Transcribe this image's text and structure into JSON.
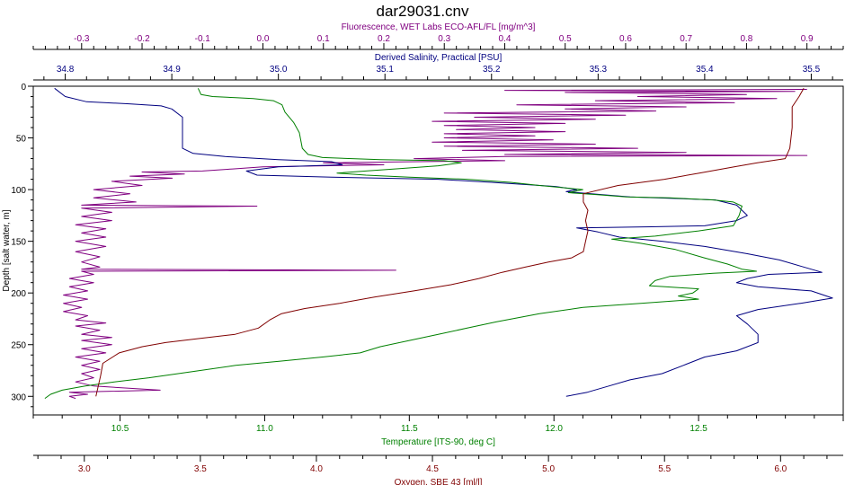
{
  "chart_data": {
    "type": "line",
    "title": "dar29031.cnv",
    "grid": false,
    "y_axis": {
      "label": "Depth [salt water, m]",
      "range": [
        0,
        318
      ],
      "inverted": true,
      "ticks": [
        "0",
        "50",
        "100",
        "150",
        "200",
        "250",
        "300"
      ],
      "tick_values": [
        0,
        50,
        100,
        150,
        200,
        250,
        300
      ],
      "color": "#000000"
    },
    "x_axes": [
      {
        "id": "fluorescence",
        "label": "Fluorescence, WET Labs ECO-AFL/FL [mg/m^3]",
        "position": "top-outer",
        "color": "#800080",
        "range": [
          -0.38,
          0.96
        ],
        "ticks": [
          "-0.3",
          "-0.2",
          "-0.1",
          "0.0",
          "0.1",
          "0.2",
          "0.3",
          "0.4",
          "0.5",
          "0.6",
          "0.7",
          "0.8",
          "0.9"
        ],
        "tick_values": [
          -0.3,
          -0.2,
          -0.1,
          0.0,
          0.1,
          0.2,
          0.3,
          0.4,
          0.5,
          0.6,
          0.7,
          0.8,
          0.9
        ]
      },
      {
        "id": "salinity",
        "label": "Derived Salinity, Practical [PSU]",
        "position": "top-inner",
        "color": "#000080",
        "range": [
          34.77,
          35.53
        ],
        "ticks": [
          "34.8",
          "34.9",
          "35.0",
          "35.1",
          "35.2",
          "35.3",
          "35.4",
          "35.5"
        ],
        "tick_values": [
          34.8,
          34.9,
          35.0,
          35.1,
          35.2,
          35.3,
          35.4,
          35.5
        ]
      },
      {
        "id": "temperature",
        "label": "Temperature [ITS-90, deg C]",
        "position": "bottom-inner",
        "color": "#008000",
        "range": [
          10.2,
          13.0
        ],
        "ticks": [
          "10.5",
          "11.0",
          "11.5",
          "12.0",
          "12.5"
        ],
        "tick_values": [
          10.5,
          11.0,
          11.5,
          12.0,
          12.5
        ]
      },
      {
        "id": "oxygen",
        "label": "Oxygen, SBE 43 [ml/l]",
        "position": "bottom-outer",
        "color": "#800000",
        "range": [
          2.78,
          6.27
        ],
        "ticks": [
          "3.0",
          "3.5",
          "4.0",
          "4.5",
          "5.0",
          "5.5",
          "6.0"
        ],
        "tick_values": [
          3.0,
          3.5,
          4.0,
          4.5,
          5.0,
          5.5,
          6.0
        ]
      }
    ],
    "series": [
      {
        "axis": "fluorescence",
        "color": "#800080",
        "points": [
          [
            0.9,
            3
          ],
          [
            0.4,
            4
          ],
          [
            0.88,
            5
          ],
          [
            0.5,
            6
          ],
          [
            0.8,
            8
          ],
          [
            0.62,
            10
          ],
          [
            0.85,
            12
          ],
          [
            0.55,
            14
          ],
          [
            0.78,
            16
          ],
          [
            0.42,
            18
          ],
          [
            0.7,
            20
          ],
          [
            0.5,
            22
          ],
          [
            0.65,
            24
          ],
          [
            0.3,
            26
          ],
          [
            0.6,
            28
          ],
          [
            0.35,
            30
          ],
          [
            0.55,
            32
          ],
          [
            0.28,
            34
          ],
          [
            0.5,
            36
          ],
          [
            0.3,
            38
          ],
          [
            0.45,
            40
          ],
          [
            0.32,
            42
          ],
          [
            0.5,
            44
          ],
          [
            0.3,
            46
          ],
          [
            0.45,
            48
          ],
          [
            0.3,
            50
          ],
          [
            0.48,
            52
          ],
          [
            0.28,
            54
          ],
          [
            0.55,
            56
          ],
          [
            0.3,
            58
          ],
          [
            0.62,
            60
          ],
          [
            0.33,
            62
          ],
          [
            0.7,
            64
          ],
          [
            0.4,
            66
          ],
          [
            0.9,
            67
          ],
          [
            0.4,
            68
          ],
          [
            0.25,
            70
          ],
          [
            0.4,
            72
          ],
          [
            0.1,
            74
          ],
          [
            0.2,
            76
          ],
          [
            0.0,
            78
          ],
          [
            -0.05,
            80
          ],
          [
            -0.1,
            82
          ],
          [
            -0.2,
            83
          ],
          [
            -0.13,
            85
          ],
          [
            -0.22,
            87
          ],
          [
            -0.15,
            89
          ],
          [
            -0.25,
            92
          ],
          [
            -0.2,
            96
          ],
          [
            -0.28,
            100
          ],
          [
            -0.22,
            104
          ],
          [
            -0.28,
            108
          ],
          [
            -0.21,
            112
          ],
          [
            -0.3,
            115
          ],
          [
            -0.01,
            116
          ],
          [
            -0.3,
            118
          ],
          [
            -0.25,
            122
          ],
          [
            -0.3,
            126
          ],
          [
            -0.25,
            130
          ],
          [
            -0.31,
            134
          ],
          [
            -0.26,
            138
          ],
          [
            -0.3,
            142
          ],
          [
            -0.26,
            146
          ],
          [
            -0.31,
            150
          ],
          [
            -0.26,
            155
          ],
          [
            -0.31,
            160
          ],
          [
            -0.27,
            165
          ],
          [
            -0.3,
            170
          ],
          [
            -0.27,
            175
          ],
          [
            -0.3,
            177
          ],
          [
            0.22,
            178
          ],
          [
            -0.3,
            179
          ],
          [
            -0.28,
            182
          ],
          [
            -0.32,
            186
          ],
          [
            -0.28,
            190
          ],
          [
            -0.32,
            194
          ],
          [
            -0.29,
            198
          ],
          [
            -0.33,
            202
          ],
          [
            -0.29,
            206
          ],
          [
            -0.33,
            210
          ],
          [
            -0.3,
            214
          ],
          [
            -0.33,
            218
          ],
          [
            -0.29,
            222
          ],
          [
            -0.31,
            226
          ],
          [
            -0.26,
            229
          ],
          [
            -0.31,
            232
          ],
          [
            -0.27,
            236
          ],
          [
            -0.3,
            240
          ],
          [
            -0.25,
            243
          ],
          [
            -0.3,
            246
          ],
          [
            -0.25,
            250
          ],
          [
            -0.3,
            254
          ],
          [
            -0.26,
            258
          ],
          [
            -0.31,
            262
          ],
          [
            -0.27,
            266
          ],
          [
            -0.3,
            270
          ],
          [
            -0.27,
            274
          ],
          [
            -0.3,
            278
          ],
          [
            -0.28,
            282
          ],
          [
            -0.31,
            286
          ],
          [
            -0.28,
            290
          ],
          [
            -0.17,
            294
          ],
          [
            -0.32,
            296
          ],
          [
            -0.29,
            298
          ],
          [
            -0.32,
            300
          ],
          [
            -0.31,
            302
          ]
        ]
      },
      {
        "axis": "salinity",
        "color": "#000080",
        "points": [
          [
            34.79,
            2
          ],
          [
            34.8,
            10
          ],
          [
            34.82,
            15
          ],
          [
            34.86,
            17
          ],
          [
            34.89,
            19
          ],
          [
            34.9,
            22
          ],
          [
            34.91,
            30
          ],
          [
            34.91,
            40
          ],
          [
            34.91,
            50
          ],
          [
            34.91,
            60
          ],
          [
            34.92,
            65
          ],
          [
            34.95,
            68
          ],
          [
            35.0,
            71
          ],
          [
            35.05,
            73
          ],
          [
            35.06,
            76
          ],
          [
            35.0,
            78
          ],
          [
            34.97,
            82
          ],
          [
            34.98,
            86
          ],
          [
            35.05,
            88
          ],
          [
            35.15,
            90
          ],
          [
            35.2,
            93
          ],
          [
            35.26,
            97
          ],
          [
            35.28,
            100
          ],
          [
            35.27,
            102
          ],
          [
            35.33,
            107
          ],
          [
            35.41,
            110
          ],
          [
            35.43,
            115
          ],
          [
            35.44,
            125
          ],
          [
            35.43,
            130
          ],
          [
            35.4,
            135
          ],
          [
            35.35,
            136
          ],
          [
            35.28,
            137
          ],
          [
            35.3,
            141
          ],
          [
            35.32,
            146
          ],
          [
            35.36,
            150
          ],
          [
            35.4,
            155
          ],
          [
            35.44,
            162
          ],
          [
            35.47,
            168
          ],
          [
            35.49,
            174
          ],
          [
            35.51,
            180
          ],
          [
            35.46,
            182
          ],
          [
            35.44,
            186
          ],
          [
            35.43,
            190
          ],
          [
            35.45,
            194
          ],
          [
            35.5,
            198
          ],
          [
            35.52,
            205
          ],
          [
            35.49,
            210
          ],
          [
            35.45,
            216
          ],
          [
            35.43,
            222
          ],
          [
            35.44,
            230
          ],
          [
            35.45,
            240
          ],
          [
            35.45,
            248
          ],
          [
            35.43,
            256
          ],
          [
            35.4,
            262
          ],
          [
            35.38,
            270
          ],
          [
            35.36,
            278
          ],
          [
            35.33,
            284
          ],
          [
            35.31,
            290
          ],
          [
            35.29,
            296
          ],
          [
            35.27,
            300
          ]
        ]
      },
      {
        "axis": "temperature",
        "color": "#008000",
        "points": [
          [
            10.77,
            2
          ],
          [
            10.78,
            8
          ],
          [
            10.82,
            10
          ],
          [
            10.9,
            11
          ],
          [
            10.96,
            12
          ],
          [
            11.03,
            14
          ],
          [
            11.06,
            18
          ],
          [
            11.07,
            25
          ],
          [
            11.1,
            35
          ],
          [
            11.12,
            45
          ],
          [
            11.13,
            60
          ],
          [
            11.15,
            66
          ],
          [
            11.2,
            69
          ],
          [
            11.4,
            71
          ],
          [
            11.62,
            72
          ],
          [
            11.68,
            74
          ],
          [
            11.6,
            77
          ],
          [
            11.45,
            80
          ],
          [
            11.35,
            82
          ],
          [
            11.25,
            84
          ],
          [
            11.35,
            86
          ],
          [
            11.5,
            88
          ],
          [
            11.7,
            90
          ],
          [
            11.85,
            93
          ],
          [
            11.95,
            96
          ],
          [
            12.1,
            100
          ],
          [
            12.05,
            103
          ],
          [
            12.15,
            105
          ],
          [
            12.25,
            107
          ],
          [
            12.4,
            108
          ],
          [
            12.55,
            110
          ],
          [
            12.62,
            112
          ],
          [
            12.65,
            116
          ],
          [
            12.64,
            125
          ],
          [
            12.62,
            135
          ],
          [
            12.5,
            140
          ],
          [
            12.35,
            145
          ],
          [
            12.2,
            148
          ],
          [
            12.3,
            152
          ],
          [
            12.42,
            158
          ],
          [
            12.52,
            166
          ],
          [
            12.6,
            172
          ],
          [
            12.65,
            177
          ],
          [
            12.7,
            179
          ],
          [
            12.55,
            181
          ],
          [
            12.4,
            184
          ],
          [
            12.35,
            188
          ],
          [
            12.33,
            193
          ],
          [
            12.5,
            196
          ],
          [
            12.48,
            200
          ],
          [
            12.43,
            203
          ],
          [
            12.5,
            206
          ],
          [
            12.3,
            210
          ],
          [
            12.1,
            214
          ],
          [
            11.95,
            220
          ],
          [
            11.8,
            228
          ],
          [
            11.7,
            234
          ],
          [
            11.6,
            240
          ],
          [
            11.5,
            246
          ],
          [
            11.4,
            252
          ],
          [
            11.33,
            258
          ],
          [
            11.2,
            262
          ],
          [
            11.05,
            266
          ],
          [
            10.9,
            270
          ],
          [
            10.75,
            276
          ],
          [
            10.6,
            282
          ],
          [
            10.48,
            286
          ],
          [
            10.38,
            290
          ],
          [
            10.3,
            294
          ],
          [
            10.26,
            298
          ],
          [
            10.24,
            302
          ]
        ]
      },
      {
        "axis": "oxygen",
        "color": "#800000",
        "points": [
          [
            6.1,
            2
          ],
          [
            6.08,
            10
          ],
          [
            6.05,
            20
          ],
          [
            6.05,
            40
          ],
          [
            6.04,
            60
          ],
          [
            6.02,
            70
          ],
          [
            5.9,
            74
          ],
          [
            5.8,
            78
          ],
          [
            5.65,
            84
          ],
          [
            5.5,
            90
          ],
          [
            5.3,
            96
          ],
          [
            5.15,
            104
          ],
          [
            5.15,
            112
          ],
          [
            5.17,
            120
          ],
          [
            5.16,
            130
          ],
          [
            5.17,
            140
          ],
          [
            5.16,
            150
          ],
          [
            5.15,
            160
          ],
          [
            5.1,
            166
          ],
          [
            5.0,
            170
          ],
          [
            4.9,
            175
          ],
          [
            4.8,
            180
          ],
          [
            4.7,
            186
          ],
          [
            4.58,
            192
          ],
          [
            4.42,
            198
          ],
          [
            4.25,
            204
          ],
          [
            4.1,
            210
          ],
          [
            3.95,
            215
          ],
          [
            3.85,
            220
          ],
          [
            3.8,
            226
          ],
          [
            3.75,
            234
          ],
          [
            3.65,
            240
          ],
          [
            3.5,
            244
          ],
          [
            3.35,
            248
          ],
          [
            3.25,
            252
          ],
          [
            3.15,
            258
          ],
          [
            3.08,
            268
          ],
          [
            3.07,
            280
          ],
          [
            3.06,
            290
          ],
          [
            3.05,
            300
          ]
        ]
      }
    ]
  }
}
